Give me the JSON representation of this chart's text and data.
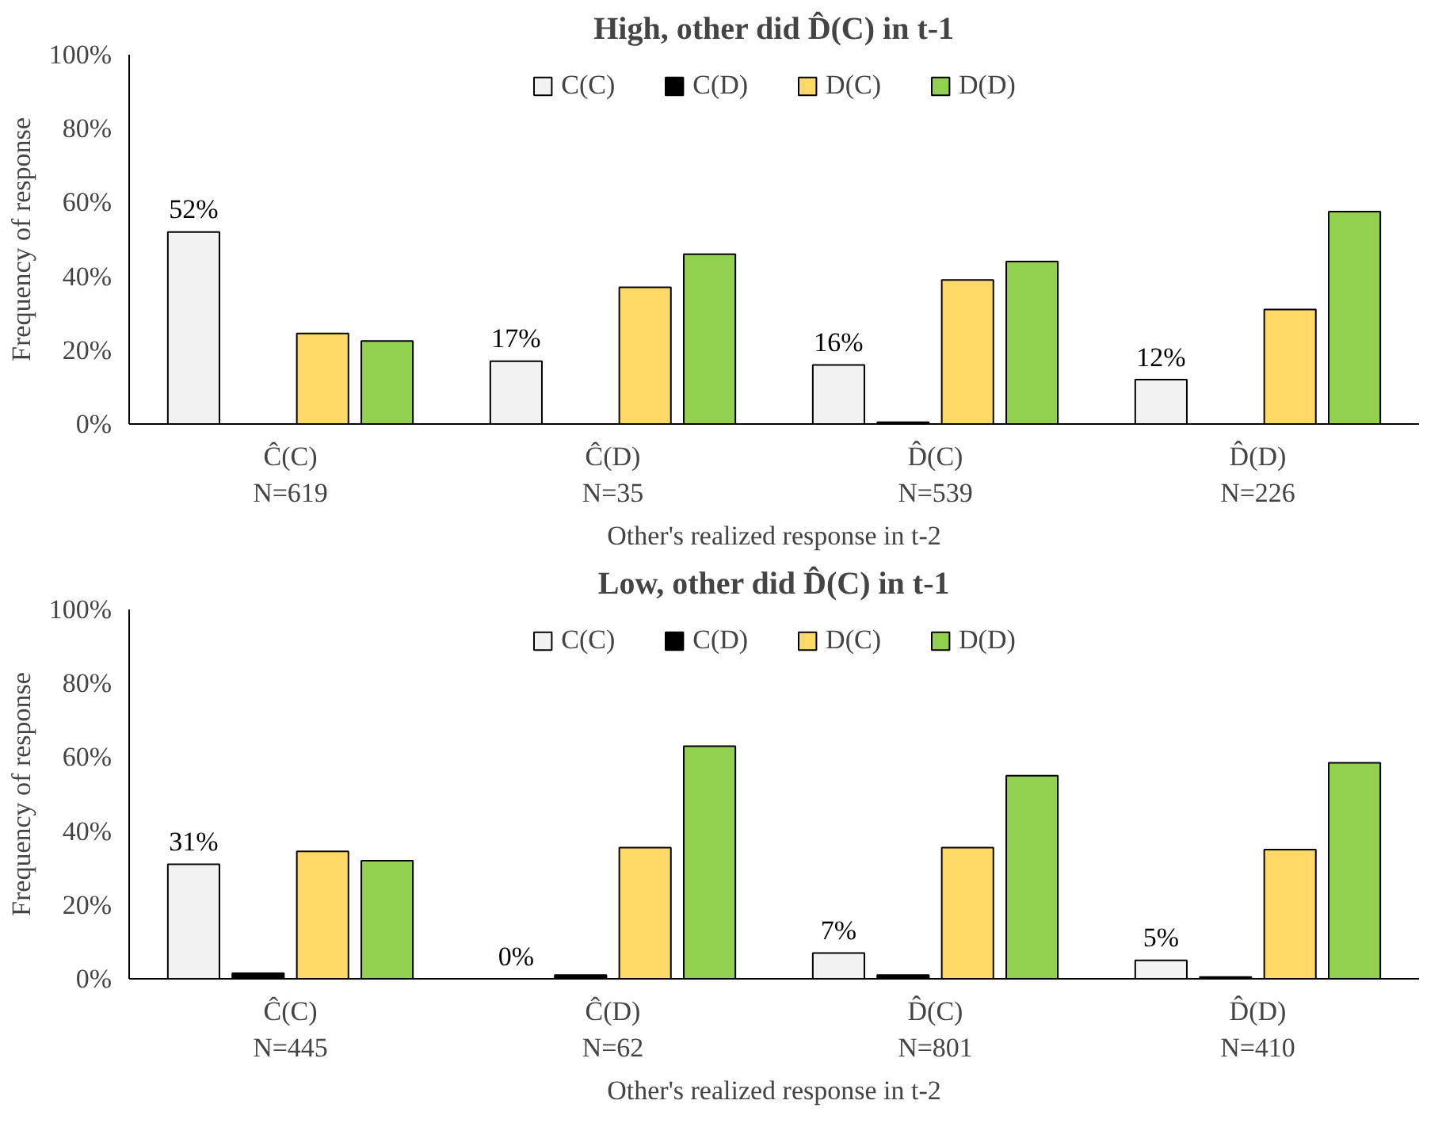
{
  "chart_data": [
    {
      "type": "bar",
      "title": "High, other did D̂(C) in t-1",
      "xlabel": "Other's realized response in t-2",
      "ylabel": "Frequency of response",
      "categories": [
        "Ĉ(C)\nN=619",
        "Ĉ(D)\nN=35",
        "D̂(C)\nN=539",
        "D̂(D)\nN=226"
      ],
      "series": [
        {
          "name": "C(C)",
          "color": "#f2f2f2",
          "values": [
            52,
            17,
            16,
            12
          ],
          "value_labels": [
            "52%",
            "17%",
            "16%",
            "12%"
          ]
        },
        {
          "name": "C(D)",
          "color": "#000000",
          "values": [
            0,
            0,
            0.5,
            0
          ]
        },
        {
          "name": "D(C)",
          "color": "#ffd966",
          "values": [
            24.5,
            37,
            39,
            31
          ]
        },
        {
          "name": "D(D)",
          "color": "#92d050",
          "values": [
            22.5,
            46,
            44,
            57.5
          ]
        }
      ],
      "ylim": [
        0,
        100
      ],
      "yticks": [
        {
          "value": 0,
          "label": "0%"
        },
        {
          "value": 20,
          "label": "20%"
        },
        {
          "value": 40,
          "label": "40%"
        },
        {
          "value": 60,
          "label": "60%"
        },
        {
          "value": 80,
          "label": "80%"
        },
        {
          "value": 100,
          "label": "100%"
        }
      ],
      "legend": "top",
      "grid": false
    },
    {
      "type": "bar",
      "title": "Low, other did D̂(C) in t-1",
      "xlabel": "Other's realized response in t-2",
      "ylabel": "Frequency of response",
      "categories": [
        "Ĉ(C)\nN=445",
        "Ĉ(D)\nN=62",
        "D̂(C)\nN=801",
        "D̂(D)\nN=410"
      ],
      "series": [
        {
          "name": "C(C)",
          "color": "#f2f2f2",
          "values": [
            31,
            0,
            7,
            5
          ],
          "value_labels": [
            "31%",
            "0%",
            "7%",
            "5%"
          ]
        },
        {
          "name": "C(D)",
          "color": "#000000",
          "values": [
            1.5,
            1,
            1,
            0.5
          ]
        },
        {
          "name": "D(C)",
          "color": "#ffd966",
          "values": [
            34.5,
            35.5,
            35.5,
            35
          ]
        },
        {
          "name": "D(D)",
          "color": "#92d050",
          "values": [
            32,
            63,
            55,
            58.5
          ]
        }
      ],
      "ylim": [
        0,
        100
      ],
      "yticks": [
        {
          "value": 0,
          "label": "0%"
        },
        {
          "value": 20,
          "label": "20%"
        },
        {
          "value": 40,
          "label": "40%"
        },
        {
          "value": 60,
          "label": "60%"
        },
        {
          "value": 80,
          "label": "80%"
        },
        {
          "value": 100,
          "label": "100%"
        }
      ],
      "legend": "top",
      "grid": false
    }
  ]
}
